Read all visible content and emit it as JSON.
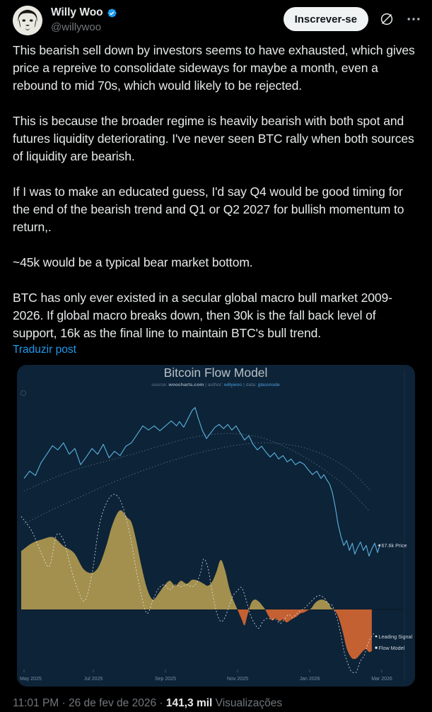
{
  "header": {
    "display_name": "Willy Woo",
    "handle": "@willywoo",
    "subscribe_label": "Inscrever-se"
  },
  "post": {
    "paragraphs": [
      "This bearish sell down by investors seems to have exhausted, which gives price a repreive to consolidate sideways for maybe a month, even a rebound to mid 70s, which would likely to be rejected.",
      "This is because the broader regime is heavily bearish with both spot and futures liquidity deteriorating. I've never seen BTC rally when both sources of liquidity are bearish.",
      "If I was to make an educated guess, I'd say Q4 would be good timing for the end of the bearish trend and Q1 or Q2 2027 for bullish momentum to return,.",
      "~45k would be a typical bear market bottom.",
      "BTC has only ever existed in a secular global macro bull market 2009-2026. If global macro breaks down, then 30k is the fall back level of support, 16k as the final line to maintain BTC's bull trend."
    ],
    "translate_label": "Traduzir post"
  },
  "footer": {
    "meta": "11:01 PM · 26 de fev de 2026 · ",
    "views_count": "141,3 mil",
    "views_label": " Visualizações"
  },
  "chart_data": {
    "type": "line+area",
    "title": "Bitcoin Flow Model",
    "subtitle": {
      "s1": "source: ",
      "s2": "woocharts.com",
      "s3": "  |  author: ",
      "s4": "willywoo",
      "s5": "  |  data: ",
      "s6": "glassnode"
    },
    "x_ticks": [
      "May 2025",
      "Jul 2025",
      "Sep 2025",
      "Nov 2025",
      "Jan 2026",
      "Mar 2026"
    ],
    "price_end_label": "67.6k Price",
    "legend": {
      "leading_signal": "Leading Signal",
      "flow_model": "Flow Model"
    },
    "layout_hints": {
      "x_range": [
        "May 2025",
        "Mar 2026"
      ],
      "price_scale": "log",
      "grid": "off",
      "legend_position": "right-inside"
    },
    "colors": {
      "background": "#0d2337",
      "price": "#55a9d6",
      "moving_average": "rgba(160,182,204,0.42)",
      "leading_signal": "rgba(226,236,245,0.85)",
      "flow_positive": "#a3904e",
      "flow_negative": "#c46132"
    },
    "series": {
      "price_usd_k": {
        "name": "BTC Price (thousand USD)",
        "end_value": 67.6,
        "points": [
          [
            0,
            93.3
          ],
          [
            0.016,
            96.6
          ],
          [
            0.032,
            94.6
          ],
          [
            0.048,
            100.6
          ],
          [
            0.064,
            104.8
          ],
          [
            0.08,
            109.2
          ],
          [
            0.095,
            107.0
          ],
          [
            0.111,
            110.7
          ],
          [
            0.127,
            104.8
          ],
          [
            0.143,
            107.7
          ],
          [
            0.159,
            99.6
          ],
          [
            0.175,
            103.4
          ],
          [
            0.191,
            107.7
          ],
          [
            0.207,
            104.8
          ],
          [
            0.223,
            109.9
          ],
          [
            0.239,
            103.0
          ],
          [
            0.254,
            106.3
          ],
          [
            0.27,
            104.1
          ],
          [
            0.286,
            108.8
          ],
          [
            0.302,
            110.7
          ],
          [
            0.318,
            115.3
          ],
          [
            0.334,
            120.1
          ],
          [
            0.35,
            117.7
          ],
          [
            0.366,
            120.1
          ],
          [
            0.382,
            117.3
          ],
          [
            0.398,
            120.1
          ],
          [
            0.414,
            123.0
          ],
          [
            0.429,
            120.1
          ],
          [
            0.437,
            122.6
          ],
          [
            0.449,
            119.3
          ],
          [
            0.461,
            124.3
          ],
          [
            0.473,
            129.4
          ],
          [
            0.481,
            131.2
          ],
          [
            0.489,
            125.1
          ],
          [
            0.501,
            117.7
          ],
          [
            0.513,
            113.0
          ],
          [
            0.525,
            116.1
          ],
          [
            0.537,
            119.3
          ],
          [
            0.549,
            120.9
          ],
          [
            0.561,
            118.5
          ],
          [
            0.573,
            120.9
          ],
          [
            0.584,
            117.7
          ],
          [
            0.596,
            120.1
          ],
          [
            0.608,
            116.1
          ],
          [
            0.62,
            112.2
          ],
          [
            0.632,
            114.5
          ],
          [
            0.644,
            109.9
          ],
          [
            0.656,
            107.0
          ],
          [
            0.668,
            108.9
          ],
          [
            0.68,
            105.9
          ],
          [
            0.692,
            103.4
          ],
          [
            0.704,
            105.5
          ],
          [
            0.716,
            102.4
          ],
          [
            0.728,
            104.1
          ],
          [
            0.74,
            101.0
          ],
          [
            0.751,
            102.4
          ],
          [
            0.763,
            99.6
          ],
          [
            0.775,
            101.0
          ],
          [
            0.787,
            99.9
          ],
          [
            0.799,
            97.3
          ],
          [
            0.811,
            95.0
          ],
          [
            0.823,
            96.6
          ],
          [
            0.835,
            93.3
          ],
          [
            0.843,
            95.0
          ],
          [
            0.851,
            92.7
          ],
          [
            0.859,
            90.8
          ],
          [
            0.867,
            87.2
          ],
          [
            0.875,
            81.4
          ],
          [
            0.883,
            74.9
          ],
          [
            0.891,
            70.6
          ],
          [
            0.899,
            67.6
          ],
          [
            0.907,
            69.2
          ],
          [
            0.915,
            66.0
          ],
          [
            0.923,
            68.3
          ],
          [
            0.93,
            64.8
          ],
          [
            0.938,
            66.9
          ],
          [
            0.946,
            68.7
          ],
          [
            0.954,
            66.0
          ],
          [
            0.962,
            67.6
          ],
          [
            0.97,
            64.2
          ],
          [
            0.978,
            66.5
          ],
          [
            0.986,
            68.3
          ],
          [
            0.994,
            65.3
          ],
          [
            1,
            67.6
          ]
        ]
      },
      "ma_fast_usd_k": {
        "name": "Moving average (fast)",
        "points": [
          [
            0,
            87.8
          ],
          [
            0.08,
            93.3
          ],
          [
            0.159,
            98.0
          ],
          [
            0.239,
            101.7
          ],
          [
            0.318,
            105.5
          ],
          [
            0.398,
            109.9
          ],
          [
            0.477,
            113.8
          ],
          [
            0.557,
            115.7
          ],
          [
            0.616,
            115.3
          ],
          [
            0.676,
            113.0
          ],
          [
            0.736,
            108.4
          ],
          [
            0.795,
            102.7
          ],
          [
            0.855,
            95.9
          ],
          [
            0.914,
            88.4
          ],
          [
            0.972,
            79.5
          ]
        ]
      },
      "ma_slow_usd_k": {
        "name": "Moving average (slow)",
        "points": [
          [
            0,
            74.9
          ],
          [
            0.08,
            80.3
          ],
          [
            0.159,
            85.4
          ],
          [
            0.239,
            90.8
          ],
          [
            0.318,
            95.9
          ],
          [
            0.398,
            100.6
          ],
          [
            0.477,
            104.8
          ],
          [
            0.557,
            108.1
          ],
          [
            0.616,
            109.9
          ],
          [
            0.676,
            110.7
          ],
          [
            0.736,
            109.9
          ],
          [
            0.795,
            107.7
          ],
          [
            0.855,
            103.4
          ],
          [
            0.914,
            97.3
          ],
          [
            0.976,
            87.8
          ]
        ]
      },
      "flow_model": {
        "name": "Flow Model",
        "baseline": 0,
        "points": [
          [
            -0.008,
            0.59
          ],
          [
            0.022,
            0.67
          ],
          [
            0.052,
            0.71
          ],
          [
            0.082,
            0.73
          ],
          [
            0.111,
            0.64
          ],
          [
            0.141,
            0.57
          ],
          [
            0.167,
            0.41
          ],
          [
            0.191,
            0.37
          ],
          [
            0.211,
            0.44
          ],
          [
            0.231,
            0.64
          ],
          [
            0.247,
            0.84
          ],
          [
            0.262,
            0.97
          ],
          [
            0.274,
            1.0
          ],
          [
            0.29,
            0.93
          ],
          [
            0.302,
            0.88
          ],
          [
            0.314,
            0.72
          ],
          [
            0.33,
            0.44
          ],
          [
            0.346,
            0.21
          ],
          [
            0.362,
            0.1
          ],
          [
            0.378,
            0.16
          ],
          [
            0.394,
            0.24
          ],
          [
            0.41,
            0.29
          ],
          [
            0.425,
            0.24
          ],
          [
            0.441,
            0.29
          ],
          [
            0.457,
            0.26
          ],
          [
            0.473,
            0.3
          ],
          [
            0.489,
            0.29
          ],
          [
            0.505,
            0.26
          ],
          [
            0.517,
            0.24
          ],
          [
            0.529,
            0.28
          ],
          [
            0.541,
            0.38
          ],
          [
            0.553,
            0.5
          ],
          [
            0.565,
            0.4
          ],
          [
            0.577,
            0.22
          ],
          [
            0.588,
            0.1
          ],
          [
            0.6,
            0.0
          ],
          [
            0.612,
            -0.1
          ],
          [
            0.62,
            -0.16
          ],
          [
            0.628,
            -0.06
          ],
          [
            0.638,
            0.06
          ],
          [
            0.648,
            0.1
          ],
          [
            0.66,
            0.08
          ],
          [
            0.672,
            0.03
          ],
          [
            0.678,
            0.0
          ],
          [
            0.688,
            -0.07
          ],
          [
            0.698,
            -0.11
          ],
          [
            0.708,
            -0.09
          ],
          [
            0.718,
            -0.12
          ],
          [
            0.728,
            -0.1
          ],
          [
            0.738,
            -0.13
          ],
          [
            0.748,
            -0.11
          ],
          [
            0.757,
            -0.09
          ],
          [
            0.767,
            -0.07
          ],
          [
            0.777,
            -0.04
          ],
          [
            0.787,
            -0.03
          ],
          [
            0.797,
            -0.01
          ],
          [
            0.807,
            0.01
          ],
          [
            0.817,
            0.06
          ],
          [
            0.827,
            0.09
          ],
          [
            0.837,
            0.1
          ],
          [
            0.847,
            0.09
          ],
          [
            0.857,
            0.06
          ],
          [
            0.863,
            0.02
          ],
          [
            0.871,
            0.0
          ],
          [
            0.879,
            -0.04
          ],
          [
            0.887,
            -0.11
          ],
          [
            0.897,
            -0.24
          ],
          [
            0.907,
            -0.39
          ],
          [
            0.917,
            -0.47
          ],
          [
            0.926,
            -0.5
          ],
          [
            0.936,
            -0.49
          ],
          [
            0.946,
            -0.45
          ],
          [
            0.96,
            -0.4
          ],
          [
            0.97,
            -0.43
          ],
          [
            0.978,
            -0.42
          ]
        ]
      },
      "leading_signal": {
        "name": "Leading Signal",
        "points": [
          [
            -0.008,
            0.94
          ],
          [
            0.022,
            0.79
          ],
          [
            0.052,
            0.54
          ],
          [
            0.072,
            0.44
          ],
          [
            0.091,
            0.75
          ],
          [
            0.111,
            0.7
          ],
          [
            0.131,
            0.43
          ],
          [
            0.151,
            0.2
          ],
          [
            0.171,
            0.09
          ],
          [
            0.191,
            0.36
          ],
          [
            0.211,
            0.84
          ],
          [
            0.231,
            1.07
          ],
          [
            0.25,
            1.16
          ],
          [
            0.266,
            1.13
          ],
          [
            0.282,
            0.99
          ],
          [
            0.298,
            0.75
          ],
          [
            0.314,
            0.43
          ],
          [
            0.33,
            0.14
          ],
          [
            0.346,
            -0.04
          ],
          [
            0.362,
            0.09
          ],
          [
            0.378,
            0.21
          ],
          [
            0.394,
            0.25
          ],
          [
            0.41,
            0.2
          ],
          [
            0.425,
            0.25
          ],
          [
            0.441,
            0.23
          ],
          [
            0.457,
            0.25
          ],
          [
            0.473,
            0.23
          ],
          [
            0.485,
            0.27
          ],
          [
            0.497,
            0.38
          ],
          [
            0.505,
            0.51
          ],
          [
            0.517,
            0.42
          ],
          [
            0.529,
            0.18
          ],
          [
            0.541,
            -0.02
          ],
          [
            0.553,
            -0.12
          ],
          [
            0.565,
            -0.08
          ],
          [
            0.577,
            0.04
          ],
          [
            0.588,
            0.14
          ],
          [
            0.6,
            0.19
          ],
          [
            0.612,
            0.22
          ],
          [
            0.624,
            0.1
          ],
          [
            0.636,
            -0.05
          ],
          [
            0.648,
            -0.14
          ],
          [
            0.66,
            -0.19
          ],
          [
            0.672,
            -0.12
          ],
          [
            0.684,
            -0.09
          ],
          [
            0.696,
            -0.1
          ],
          [
            0.708,
            -0.1
          ],
          [
            0.72,
            -0.14
          ],
          [
            0.732,
            -0.1
          ],
          [
            0.744,
            -0.05
          ],
          [
            0.755,
            -0.08
          ],
          [
            0.771,
            -0.03
          ],
          [
            0.791,
            0.02
          ],
          [
            0.807,
            0.08
          ],
          [
            0.827,
            0.14
          ],
          [
            0.843,
            0.12
          ],
          [
            0.855,
            0.06
          ],
          [
            0.867,
            0.04
          ],
          [
            0.875,
            -0.04
          ],
          [
            0.881,
            -0.1
          ],
          [
            0.891,
            -0.26
          ],
          [
            0.901,
            -0.44
          ],
          [
            0.911,
            -0.55
          ],
          [
            0.919,
            -0.62
          ],
          [
            0.93,
            -0.64
          ],
          [
            0.936,
            -0.62
          ],
          [
            0.946,
            -0.52
          ],
          [
            0.956,
            -0.47
          ],
          [
            0.962,
            -0.4
          ],
          [
            0.97,
            -0.32
          ],
          [
            0.978,
            -0.27
          ],
          [
            0.984,
            -0.24
          ]
        ]
      }
    }
  }
}
